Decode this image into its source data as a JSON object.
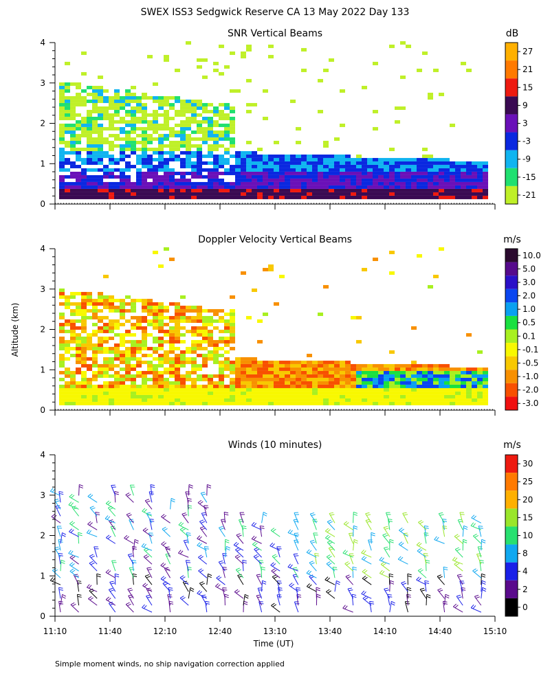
{
  "figure": {
    "title": "SWEX ISS3 Sedgwick Reserve CA  13 May 2022 Day 133",
    "ylabel": "Altitude (km)",
    "xlabel": "Time (UT)",
    "footnote": "Simple moment winds, no ship navigation correction applied"
  },
  "chart_data": [
    {
      "type": "heatmap",
      "title": "SNR Vertical Beams",
      "x_ticks": [
        "11:10",
        "11:40",
        "12:10",
        "12:40",
        "13:10",
        "13:40",
        "14:10",
        "14:40",
        "15:10"
      ],
      "y_ticks": [
        "0",
        "1",
        "2",
        "3",
        "4"
      ],
      "ylim": [
        0,
        4
      ],
      "colorbar": {
        "unit": "dB",
        "labels": [
          "27",
          "21",
          "15",
          "9",
          "3",
          "-3",
          "-9",
          "-15",
          "-21"
        ],
        "colors": [
          "#ffb000",
          "#ff7a00",
          "#ee1a10",
          "#3a0a52",
          "#6a10b8",
          "#0a28e0",
          "#10b4f0",
          "#20e070",
          "#bff028"
        ]
      }
    },
    {
      "type": "heatmap",
      "title": "Doppler Velocity Vertical Beams",
      "x_ticks": [
        "11:10",
        "11:40",
        "12:10",
        "12:40",
        "13:10",
        "13:40",
        "14:10",
        "14:40",
        "15:10"
      ],
      "y_ticks": [
        "0",
        "1",
        "2",
        "3",
        "4"
      ],
      "ylim": [
        0,
        4
      ],
      "colorbar": {
        "unit": "m/s",
        "labels": [
          "10.0",
          "5.0",
          "3.0",
          "2.0",
          "1.0",
          "0.5",
          "0.1",
          "-0.1",
          "-0.5",
          "-1.0",
          "-2.0",
          "-3.0"
        ],
        "colors": [
          "#2a0a2e",
          "#560a8c",
          "#2a10c8",
          "#0a46f0",
          "#0aa0f0",
          "#1ae040",
          "#a8f020",
          "#f8f800",
          "#f8c800",
          "#f89000",
          "#f85000",
          "#f01010"
        ]
      }
    },
    {
      "type": "scatter",
      "title": "Winds (10 minutes)",
      "x_ticks": [
        "11:10",
        "11:40",
        "12:10",
        "12:40",
        "13:10",
        "13:40",
        "14:10",
        "14:40",
        "15:10"
      ],
      "y_ticks": [
        "0",
        "1",
        "2",
        "3",
        "4"
      ],
      "ylim": [
        0,
        4
      ],
      "colorbar": {
        "unit": "m/s",
        "labels": [
          "30",
          "25",
          "20",
          "15",
          "10",
          "8",
          "4",
          "2",
          "0"
        ],
        "colors": [
          "#ee1a10",
          "#ff7a00",
          "#ffb000",
          "#9ae62a",
          "#28e070",
          "#10a8f0",
          "#1a20e8",
          "#5a0a8c",
          "#000000"
        ]
      }
    }
  ]
}
